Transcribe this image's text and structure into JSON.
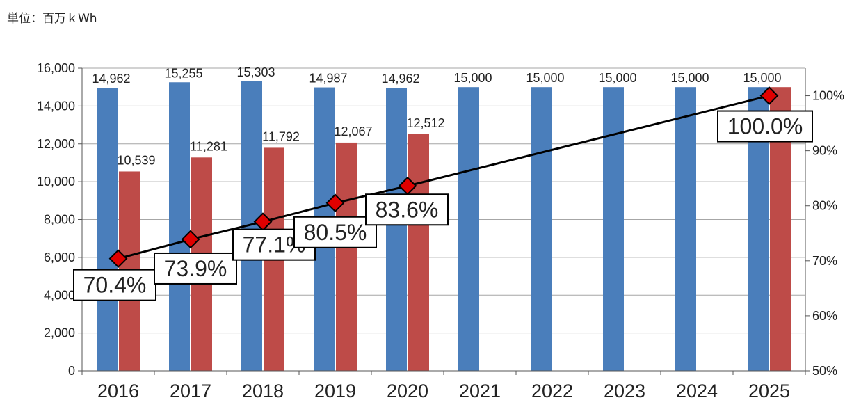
{
  "unit_label": "単位：百万ｋWh",
  "colors": {
    "target_bar": "#4a7ebb",
    "actual_bar": "#be4b48",
    "line": "#000000",
    "marker": "#e00000",
    "grid": "#a6a6a6"
  },
  "chart_data": {
    "type": "bar",
    "categories": [
      "2016",
      "2017",
      "2018",
      "2019",
      "2020",
      "2021",
      "2022",
      "2023",
      "2024",
      "2025"
    ],
    "series": [
      {
        "values": [
          14962,
          15255,
          15303,
          14987,
          14962,
          15000,
          15000,
          15000,
          15000,
          15000
        ],
        "labels": [
          "14,962",
          "15,255",
          "15,303",
          "14,987",
          "14,962",
          "15,000",
          "15,000",
          "15,000",
          "15,000",
          "15,000"
        ]
      },
      {
        "values": [
          10539,
          11281,
          11792,
          12067,
          12512,
          null,
          null,
          null,
          null,
          15000
        ],
        "labels": [
          "10,539",
          "11,281",
          "11,792",
          "12,067",
          "12,512",
          "",
          "",
          "",
          "",
          ""
        ]
      }
    ],
    "line_series": {
      "type": "line",
      "axis": "right",
      "points": [
        {
          "x": "2016",
          "y": 70.4,
          "label": "70.4%"
        },
        {
          "x": "2017",
          "y": 73.9,
          "label": "73.9%"
        },
        {
          "x": "2018",
          "y": 77.1,
          "label": "77.1%"
        },
        {
          "x": "2019",
          "y": 80.5,
          "label": "80.5%"
        },
        {
          "x": "2020",
          "y": 83.6,
          "label": "83.6%"
        },
        {
          "x": "2025",
          "y": 100.0,
          "label": "100.0%"
        }
      ]
    },
    "y_left": {
      "min": 0,
      "max": 16000,
      "step": 2000,
      "ticks": [
        "0",
        "2,000",
        "4,000",
        "6,000",
        "8,000",
        "10,000",
        "12,000",
        "14,000",
        "16,000"
      ]
    },
    "y_right": {
      "min": 50,
      "max": 105,
      "ticks": [
        {
          "value": 50,
          "label": "50%"
        },
        {
          "value": 60,
          "label": "60%"
        },
        {
          "value": 70,
          "label": "70%"
        },
        {
          "value": 80,
          "label": "80%"
        },
        {
          "value": 90,
          "label": "90%"
        },
        {
          "value": 100,
          "label": "100%"
        }
      ]
    },
    "grid": true,
    "legend": "none"
  }
}
